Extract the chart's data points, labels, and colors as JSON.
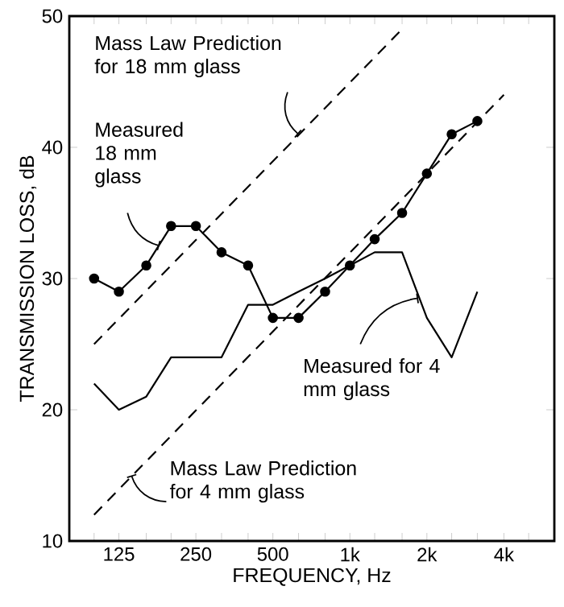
{
  "chart_data": {
    "type": "line",
    "xlabel": "FREQUENCY, Hz",
    "ylabel": "TRANSMISSION LOSS, dB",
    "log": "x",
    "xlim": [
      80,
      6300
    ],
    "ylim": [
      10,
      50
    ],
    "xticks": [
      {
        "value": 100,
        "label": null
      },
      125,
      {
        "value": 160,
        "label": null
      },
      {
        "value": 200,
        "label": null
      },
      250,
      {
        "value": 315,
        "label": null
      },
      {
        "value": 400,
        "label": null
      },
      500,
      {
        "value": 630,
        "label": null
      },
      {
        "value": 800,
        "label": null
      },
      {
        "value": 1000,
        "label": "1k"
      },
      {
        "value": 1250,
        "label": null
      },
      {
        "value": 1600,
        "label": null
      },
      {
        "value": 2000,
        "label": "2k"
      },
      {
        "value": 2500,
        "label": null
      },
      {
        "value": 3150,
        "label": null
      },
      {
        "value": 4000,
        "label": "4k"
      },
      {
        "value": 5000,
        "label": null
      }
    ],
    "yticks": [
      10,
      20,
      30,
      40,
      50
    ],
    "series": [
      {
        "color": "#000000",
        "marker": "circle",
        "line_style": "solid",
        "x": [
          100,
          125,
          160,
          200,
          250,
          315,
          400,
          500,
          630,
          800,
          1000,
          1250,
          1600,
          2000,
          2500,
          3150
        ],
        "values": [
          30,
          29,
          31,
          34,
          34,
          32,
          31,
          27,
          27,
          29,
          31,
          33,
          35,
          38,
          41,
          42
        ]
      },
      {
        "color": "#000000",
        "marker": "none",
        "line_style": "solid",
        "x": [
          100,
          125,
          160,
          200,
          250,
          315,
          400,
          500,
          630,
          800,
          1000,
          1250,
          1600,
          2000,
          2500,
          3150
        ],
        "values": [
          22,
          20,
          21,
          24,
          24,
          24,
          28,
          28,
          29,
          30,
          31,
          32,
          32,
          27,
          24,
          29
        ]
      },
      {
        "color": "#000000",
        "marker": "none",
        "line_style": "dashed",
        "x": [
          100,
          1600
        ],
        "values": [
          25,
          49
        ]
      },
      {
        "color": "#000000",
        "marker": "none",
        "line_style": "dashed",
        "x": [
          100,
          4000
        ],
        "values": [
          12,
          44
        ]
      }
    ],
    "annotations": [
      {
        "text": "Mass Law Prediction for 18 mm glass",
        "x": 630,
        "y": 41
      },
      {
        "text": "Measured 18 mm glass",
        "x": 180,
        "y": 32.5
      },
      {
        "text": "Measured for 4 mm glass",
        "x": 1850,
        "y": 28.5
      },
      {
        "text": "Mass Law Prediction for 4 mm glass",
        "x": 140,
        "y": 15
      }
    ]
  }
}
